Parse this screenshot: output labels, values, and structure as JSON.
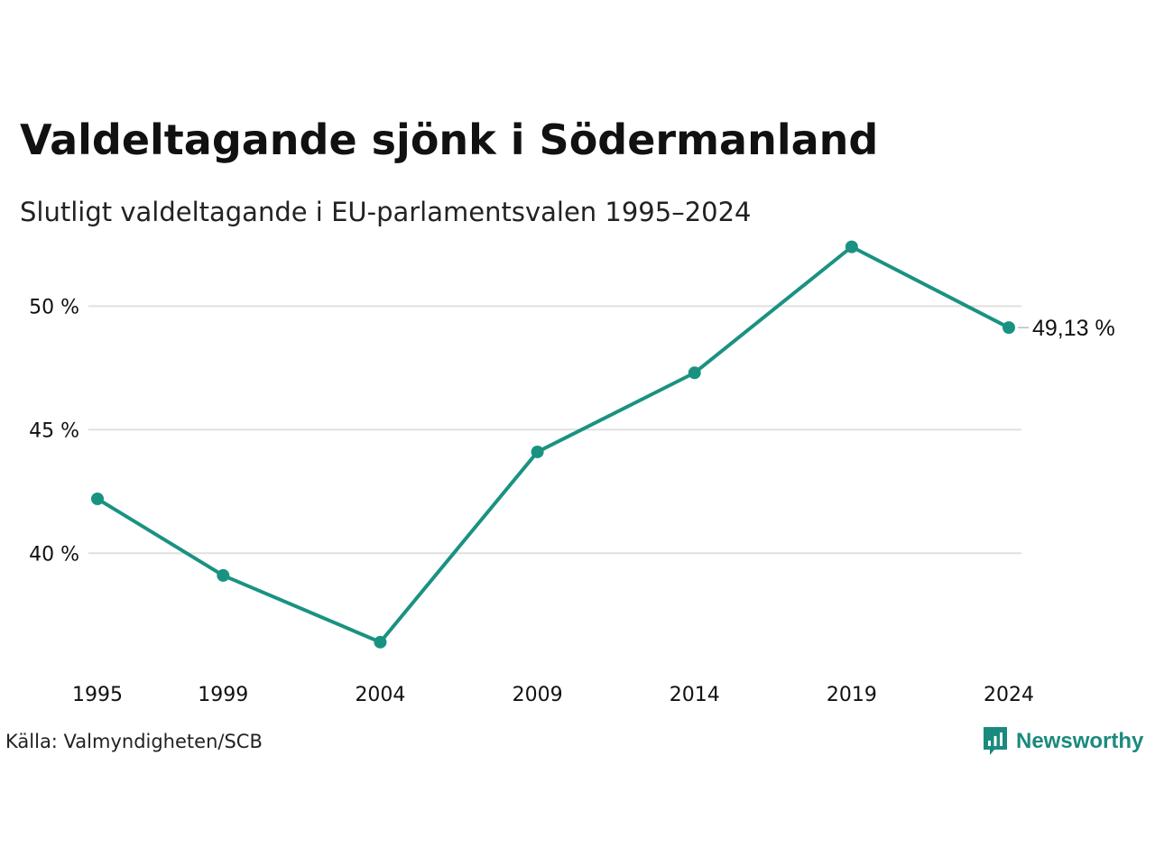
{
  "title": "Valdeltagande sjönk i Södermanland",
  "subtitle": "Slutligt valdeltagande i EU-parlamentsvalen 1995–2024",
  "source": "Källa: Valmyndigheten/SCB",
  "brand": {
    "name": "Newsworthy",
    "icon": "newsworthy-logo-icon",
    "color": "#1a8a7e"
  },
  "colors": {
    "line": "#1a9282",
    "grid": "#e0e0e0",
    "text": "#111111"
  },
  "chart_data": {
    "type": "line",
    "categories": [
      "1995",
      "1999",
      "2004",
      "2009",
      "2014",
      "2019",
      "2024"
    ],
    "x": [
      1995,
      1999,
      2004,
      2009,
      2014,
      2019,
      2024
    ],
    "series": [
      {
        "values": [
          42.2,
          39.1,
          36.4,
          44.1,
          47.3,
          52.4,
          49.13
        ]
      }
    ],
    "yticks": [
      {
        "value": 40,
        "label": "40 %"
      },
      {
        "value": 45,
        "label": "45 %"
      },
      {
        "value": 50,
        "label": "50 %"
      }
    ],
    "ylim": [
      35,
      54
    ],
    "grid": true,
    "end_label": "49,13 %",
    "xlabel": "",
    "ylabel": ""
  }
}
